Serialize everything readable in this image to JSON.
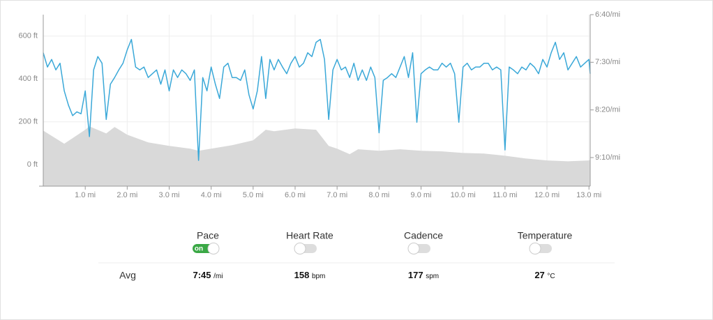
{
  "chart_data": {
    "type": "line",
    "xlim": [
      0,
      13.03
    ],
    "xticks": [
      {
        "value": 1,
        "label": "1.0 mi"
      },
      {
        "value": 2,
        "label": "2.0 mi"
      },
      {
        "value": 3,
        "label": "3.0 mi"
      },
      {
        "value": 4,
        "label": "4.0 mi"
      },
      {
        "value": 5,
        "label": "5.0 mi"
      },
      {
        "value": 6,
        "label": "6.0 mi"
      },
      {
        "value": 7,
        "label": "7.0 mi"
      },
      {
        "value": 8,
        "label": "8.0 mi"
      },
      {
        "value": 9,
        "label": "9.0 mi"
      },
      {
        "value": 10,
        "label": "10.0 mi"
      },
      {
        "value": 11,
        "label": "11.0 mi"
      },
      {
        "value": 12,
        "label": "12.0 mi"
      },
      {
        "value": 13,
        "label": "13.0 mi"
      }
    ],
    "ylim": [
      -100,
      700
    ],
    "yticks": [
      {
        "value": 0,
        "label": "0 ft"
      },
      {
        "value": 200,
        "label": "200 ft"
      },
      {
        "value": 400,
        "label": "400 ft"
      },
      {
        "value": 600,
        "label": "600 ft"
      }
    ],
    "y2lim": [
      580,
      400
    ],
    "y2ticks": [
      {
        "value": 400,
        "label": "6:40/mi"
      },
      {
        "value": 450,
        "label": "7:30/mi"
      },
      {
        "value": 500,
        "label": "8:20/mi"
      },
      {
        "value": 550,
        "label": "9:10/mi"
      }
    ],
    "grid": true,
    "series": [
      {
        "type": "area",
        "color": "#d9d9d9",
        "x": [
          0,
          0.5,
          1.0,
          1.1,
          1.5,
          1.7,
          2.0,
          2.5,
          3.0,
          3.5,
          3.7,
          4.0,
          4.5,
          5.0,
          5.3,
          5.5,
          6.0,
          6.5,
          6.8,
          7.0,
          7.3,
          7.5,
          8.0,
          8.5,
          9.0,
          9.5,
          10.0,
          10.5,
          11.0,
          11.5,
          12.0,
          12.5,
          13.0,
          13.03
        ],
        "values": [
          159,
          98,
          163,
          179,
          146,
          176,
          140,
          104,
          88,
          75,
          65,
          75,
          91,
          114,
          163,
          156,
          169,
          163,
          88,
          75,
          49,
          72,
          65,
          72,
          65,
          62,
          55,
          52,
          42,
          29,
          20,
          16,
          20,
          23
        ]
      },
      {
        "type": "line",
        "color": "#3aa8d8",
        "axis": "y2",
        "x": [
          0,
          0.1,
          0.2,
          0.3,
          0.4,
          0.5,
          0.6,
          0.7,
          0.8,
          0.9,
          1.0,
          1.1,
          1.2,
          1.3,
          1.4,
          1.5,
          1.6,
          1.7,
          1.8,
          1.9,
          2.0,
          2.1,
          2.2,
          2.3,
          2.4,
          2.5,
          2.6,
          2.7,
          2.8,
          2.9,
          3.0,
          3.1,
          3.2,
          3.3,
          3.4,
          3.5,
          3.6,
          3.7,
          3.8,
          3.9,
          4.0,
          4.1,
          4.2,
          4.3,
          4.4,
          4.5,
          4.6,
          4.7,
          4.8,
          4.9,
          5.0,
          5.1,
          5.2,
          5.3,
          5.4,
          5.5,
          5.6,
          5.7,
          5.8,
          5.9,
          6.0,
          6.1,
          6.2,
          6.3,
          6.4,
          6.5,
          6.6,
          6.7,
          6.8,
          6.9,
          7.0,
          7.1,
          7.2,
          7.3,
          7.4,
          7.5,
          7.6,
          7.7,
          7.8,
          7.9,
          8.0,
          8.1,
          8.2,
          8.3,
          8.4,
          8.5,
          8.6,
          8.7,
          8.8,
          8.9,
          9.0,
          9.1,
          9.2,
          9.3,
          9.4,
          9.5,
          9.6,
          9.7,
          9.8,
          9.9,
          10.0,
          10.1,
          10.2,
          10.3,
          10.4,
          10.5,
          10.6,
          10.7,
          10.8,
          10.9,
          11.0,
          11.1,
          11.2,
          11.3,
          11.4,
          11.5,
          11.6,
          11.7,
          11.8,
          11.9,
          12.0,
          12.1,
          12.2,
          12.3,
          12.4,
          12.5,
          12.6,
          12.7,
          12.8,
          12.9,
          13.0,
          13.03
        ],
        "values": [
          440,
          455,
          447,
          458,
          451,
          480,
          495,
          506,
          502,
          504,
          480,
          528,
          458,
          444,
          451,
          510,
          473,
          466,
          458,
          451,
          437,
          426,
          455,
          458,
          455,
          466,
          462,
          458,
          473,
          458,
          480,
          458,
          466,
          458,
          462,
          469,
          458,
          553,
          466,
          480,
          455,
          473,
          488,
          455,
          451,
          466,
          466,
          469,
          458,
          484,
          499,
          480,
          444,
          488,
          447,
          458,
          447,
          455,
          462,
          451,
          444,
          455,
          451,
          440,
          444,
          429,
          426,
          447,
          510,
          458,
          447,
          458,
          455,
          466,
          451,
          469,
          458,
          469,
          455,
          466,
          524,
          469,
          466,
          462,
          466,
          455,
          444,
          466,
          440,
          513,
          462,
          458,
          455,
          458,
          458,
          451,
          455,
          451,
          462,
          513,
          455,
          451,
          458,
          455,
          455,
          451,
          451,
          458,
          455,
          458,
          542,
          455,
          458,
          462,
          455,
          458,
          451,
          455,
          462,
          447,
          455,
          440,
          429,
          447,
          440,
          458,
          451,
          444,
          455,
          451,
          447,
          462
        ]
      }
    ]
  },
  "summary": {
    "row_label": "Avg",
    "metrics": [
      {
        "label": "Pace",
        "on": true,
        "toggle_text": "on",
        "avg": "7:45",
        "unit": "/mi"
      },
      {
        "label": "Heart Rate",
        "on": false,
        "avg": "158",
        "unit": "bpm"
      },
      {
        "label": "Cadence",
        "on": false,
        "avg": "177",
        "unit": "spm"
      },
      {
        "label": "Temperature",
        "on": false,
        "avg": "27",
        "unit": "°C"
      }
    ]
  }
}
